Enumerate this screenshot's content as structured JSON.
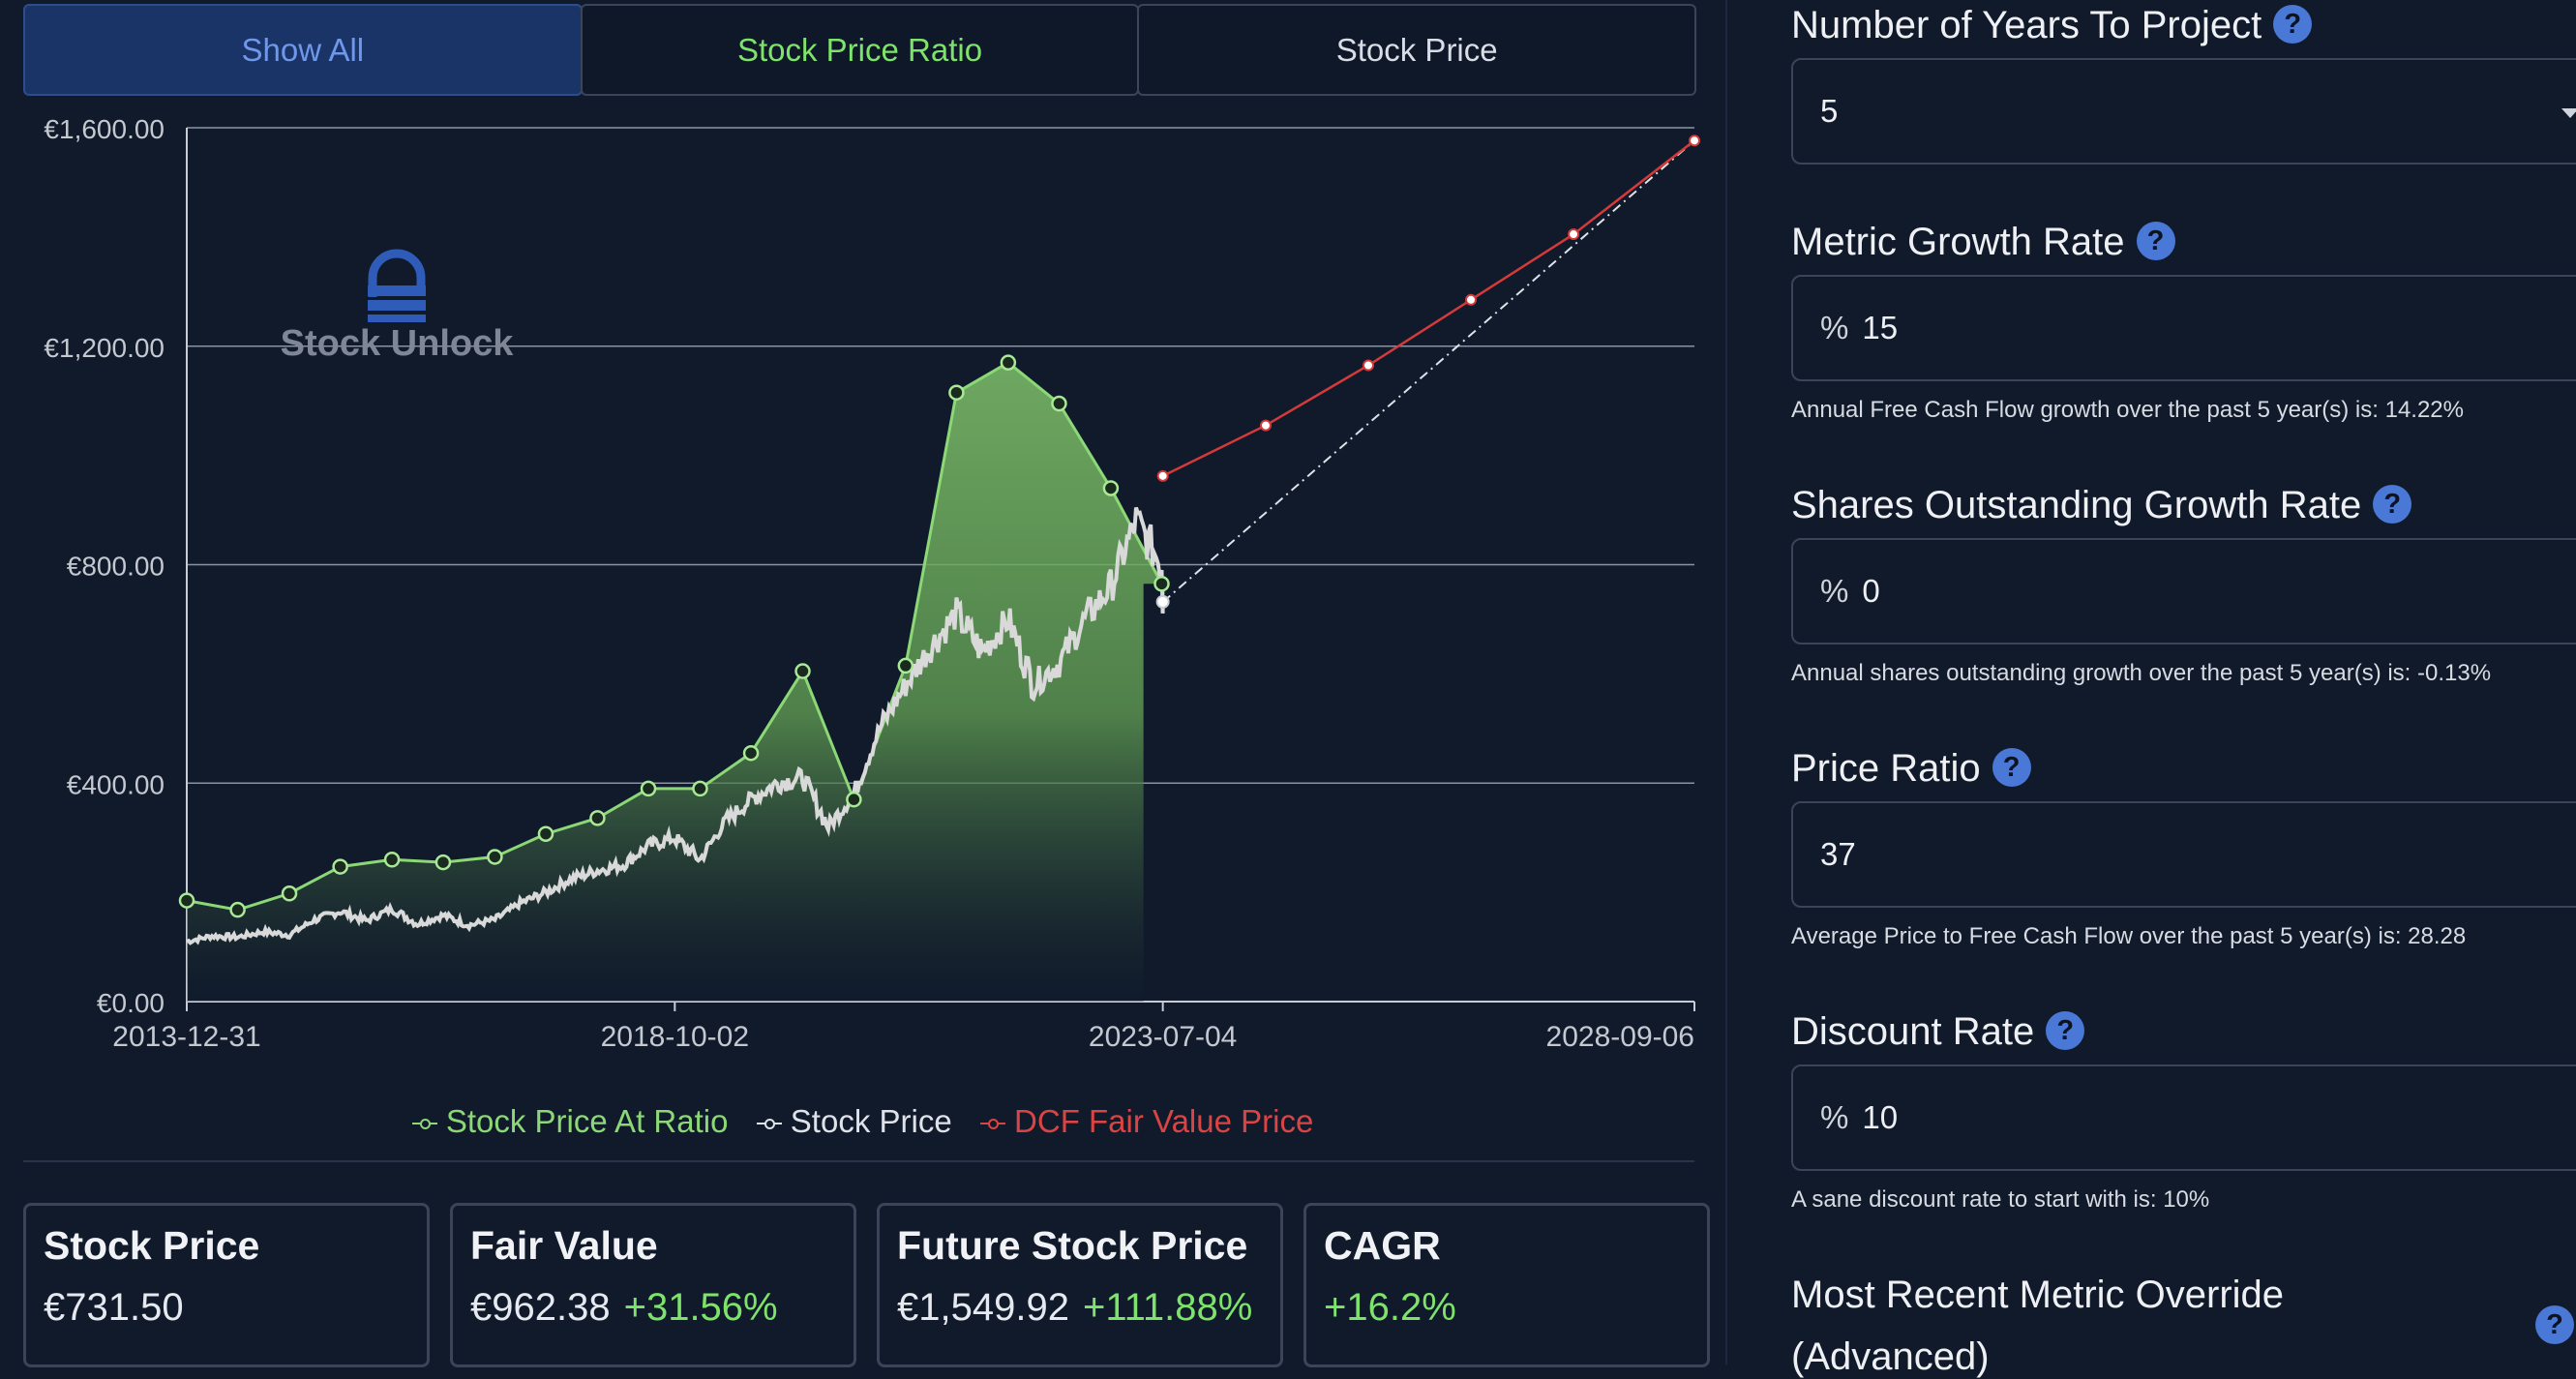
{
  "tabs": [
    "Show All",
    "Stock Price Ratio",
    "Stock Price"
  ],
  "brand": {
    "name": "Stock Unlock"
  },
  "colors": {
    "ratio": "#8cd877",
    "price": "#d9d9d9",
    "dcf": "#d43a3a",
    "accent": "#4a78d6"
  },
  "chart_data": {
    "type": "line",
    "title": "",
    "y_ticks": [
      "€0.00",
      "€400.00",
      "€800.00",
      "€1,200.00",
      "€1,600.00"
    ],
    "x_ticks": [
      "2013-12-31",
      "2018-10-02",
      "2023-07-04",
      "2028-09-06"
    ],
    "ylim": [
      0,
      1600
    ],
    "xlim": [
      "2013-12-31",
      "2028-09-06"
    ],
    "grid": true,
    "legend_position": "bottom",
    "series": [
      {
        "name": "Stock Price At Ratio",
        "color": "#8cd877",
        "type": "area",
        "points": [
          [
            "2013-12-31",
            185
          ],
          [
            "2014-06-30",
            168
          ],
          [
            "2014-12-31",
            198
          ],
          [
            "2015-06-30",
            247
          ],
          [
            "2015-12-31",
            260
          ],
          [
            "2016-06-30",
            255
          ],
          [
            "2016-12-31",
            265
          ],
          [
            "2017-06-30",
            307
          ],
          [
            "2017-12-31",
            336
          ],
          [
            "2018-06-30",
            390
          ],
          [
            "2018-12-31",
            390
          ],
          [
            "2019-06-30",
            455
          ],
          [
            "2019-12-31",
            605
          ],
          [
            "2020-06-30",
            370
          ],
          [
            "2020-12-31",
            615
          ],
          [
            "2021-06-30",
            1115
          ],
          [
            "2021-12-31",
            1170
          ],
          [
            "2022-06-30",
            1095
          ],
          [
            "2022-12-31",
            940
          ],
          [
            "2023-06-30",
            765
          ]
        ]
      },
      {
        "name": "Stock Price",
        "color": "#d9d9d9",
        "type": "line",
        "points": [
          [
            "2013-12-31",
            110
          ],
          [
            "2014-03-31",
            120
          ],
          [
            "2014-06-30",
            118
          ],
          [
            "2014-09-30",
            128
          ],
          [
            "2014-12-31",
            122
          ],
          [
            "2015-03-31",
            150
          ],
          [
            "2015-06-30",
            165
          ],
          [
            "2015-09-30",
            148
          ],
          [
            "2015-12-31",
            170
          ],
          [
            "2016-03-31",
            142
          ],
          [
            "2016-06-30",
            158
          ],
          [
            "2016-09-30",
            140
          ],
          [
            "2016-12-31",
            150
          ],
          [
            "2017-03-31",
            180
          ],
          [
            "2017-06-30",
            200
          ],
          [
            "2017-09-30",
            225
          ],
          [
            "2017-12-31",
            240
          ],
          [
            "2018-03-31",
            250
          ],
          [
            "2018-06-30",
            285
          ],
          [
            "2018-09-30",
            300
          ],
          [
            "2018-12-31",
            260
          ],
          [
            "2019-03-31",
            330
          ],
          [
            "2019-06-30",
            370
          ],
          [
            "2019-09-30",
            400
          ],
          [
            "2019-12-31",
            410
          ],
          [
            "2020-03-31",
            320
          ],
          [
            "2020-06-30",
            380
          ],
          [
            "2020-09-30",
            500
          ],
          [
            "2020-12-31",
            580
          ],
          [
            "2021-03-31",
            650
          ],
          [
            "2021-06-30",
            710
          ],
          [
            "2021-09-30",
            640
          ],
          [
            "2021-12-31",
            700
          ],
          [
            "2022-03-31",
            580
          ],
          [
            "2022-06-30",
            620
          ],
          [
            "2022-09-30",
            700
          ],
          [
            "2022-12-31",
            760
          ],
          [
            "2023-03-31",
            880
          ],
          [
            "2023-06-30",
            800
          ],
          [
            "2023-07-04",
            732
          ]
        ]
      },
      {
        "name": "DCF Fair Value Price",
        "color": "#d43a3a",
        "type": "line",
        "points": [
          [
            "2023-07-04",
            962.38
          ],
          [
            "2024-07-04",
            1055
          ],
          [
            "2025-07-04",
            1165
          ],
          [
            "2026-07-04",
            1285
          ],
          [
            "2027-07-04",
            1405
          ],
          [
            "2028-07-04",
            1549.92
          ]
        ]
      }
    ],
    "projection": {
      "from": [
        "2023-07-04",
        731.5
      ],
      "to": [
        "2028-07-04",
        1549.92
      ]
    }
  },
  "cards": [
    {
      "title": "Stock Price",
      "value": "€731.50",
      "change": ""
    },
    {
      "title": "Fair Value",
      "value": "€962.38",
      "change": "+31.56%"
    },
    {
      "title": "Future Stock Price",
      "value": "€1,549.92",
      "change": "+111.88%"
    },
    {
      "title": "CAGR",
      "value": "",
      "change": "+16.2%"
    }
  ],
  "form": {
    "years_label": "Number of Years To Project",
    "years_value": "5",
    "growth_label": "Metric Growth Rate",
    "growth_value": "15",
    "growth_hint": "Annual Free Cash Flow growth over the past 5 year(s) is: 14.22%",
    "shares_label": "Shares Outstanding Growth Rate",
    "shares_value": "0",
    "shares_hint": "Annual shares outstanding growth over the past 5 year(s) is: -0.13%",
    "ratio_label": "Price Ratio",
    "ratio_value": "37",
    "ratio_hint": "Average Price to Free Cash Flow over the past 5 year(s) is: 28.28",
    "discount_label": "Discount Rate",
    "discount_value": "10",
    "discount_hint": "A sane discount rate to start with is: 10%",
    "override_label": "Most Recent Metric Override",
    "override_label2": "(Advanced)",
    "percent": "%",
    "help": "?"
  }
}
